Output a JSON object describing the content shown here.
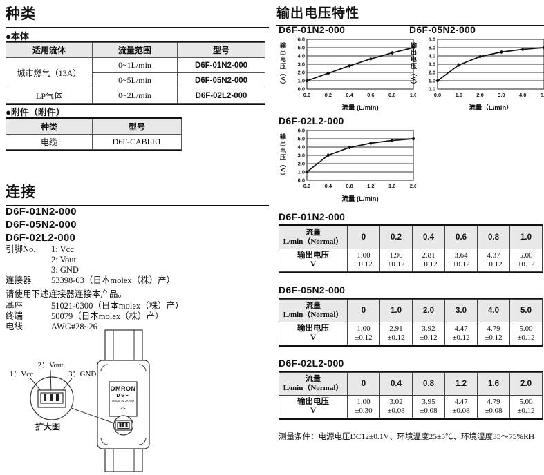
{
  "colors": {
    "header_bg": "#e8e8e8",
    "grid": "#8c8c8c",
    "ink": "#111111"
  },
  "types": {
    "title": "种类",
    "body_label": "●本体",
    "body_table": {
      "headers": [
        "适用流体",
        "流量范围",
        "型号"
      ],
      "fluid1": "城市燃气（13A）",
      "fluid2": "LP气体",
      "rows": [
        {
          "range": "0~1L/min",
          "model": "D6F-01N2-000"
        },
        {
          "range": "0~5L/min",
          "model": "D6F-05N2-000"
        },
        {
          "range": "0~2L/min",
          "model": "D6F-02L2-000"
        }
      ]
    },
    "accessory_label": "●附件（附件）",
    "accessory_table": {
      "headers": [
        "种类",
        "型号"
      ],
      "row": {
        "kind": "电缆",
        "model": "D6F-CABLE1"
      }
    }
  },
  "conn": {
    "title": "连接",
    "models": [
      "D6F-01N2-000",
      "D6F-05N2-000",
      "D6F-02L2-000"
    ],
    "pin_label": "引脚No.",
    "pins": [
      "1: Vcc",
      "2: Vout",
      "3: GND"
    ],
    "connector_label": "连接器",
    "connector_value": "53398-03（日本molex（株）产）",
    "note": "请使用下述连接器连接本产品。",
    "details": [
      {
        "label": "基座",
        "value": "51021-0300（日本molex（株）产）"
      },
      {
        "label": "终端",
        "value": "50079（日本molex（株）产）"
      },
      {
        "label": "电线",
        "value": "AWG#28~26"
      }
    ],
    "diagram": {
      "pin1": "1：Vcc",
      "pin2": "2：Vout",
      "pin3": "3：GND",
      "caption": "扩大图",
      "brand": "OMRON",
      "model": "D6F",
      "origin": "MADE IN JAPAN",
      "arrow": "⇧"
    }
  },
  "output": {
    "title": "输出电压特性",
    "tables": [
      {
        "title": "D6F-01N2-000",
        "corner": [
          "流量",
          "L/min（Normal）"
        ],
        "cols": [
          "0",
          "0.2",
          "0.4",
          "0.6",
          "0.8",
          "1.0"
        ],
        "row_label": [
          "输出电压",
          "V"
        ],
        "values": [
          [
            "1.00",
            "±0.12"
          ],
          [
            "1.90",
            "±0.12"
          ],
          [
            "2.81",
            "±0.12"
          ],
          [
            "3.64",
            "±0.12"
          ],
          [
            "4.37",
            "±0.12"
          ],
          [
            "5.00",
            "±0.12"
          ]
        ]
      },
      {
        "title": "D6F-05N2-000",
        "corner": [
          "流量",
          "L/min（Normal）"
        ],
        "cols": [
          "0",
          "1.0",
          "2.0",
          "3.0",
          "4.0",
          "5.0"
        ],
        "row_label": [
          "输出电压",
          "V"
        ],
        "values": [
          [
            "1.00",
            "±0.12"
          ],
          [
            "2.91",
            "±0.12"
          ],
          [
            "3.92",
            "±0.12"
          ],
          [
            "4.47",
            "±0.12"
          ],
          [
            "4.79",
            "±0.12"
          ],
          [
            "5.00",
            "±0.12"
          ]
        ]
      },
      {
        "title": "D6F-02L2-000",
        "corner": [
          "流量",
          "L/min（Normal）"
        ],
        "cols": [
          "0",
          "0.4",
          "0.8",
          "1.2",
          "1.6",
          "2.0"
        ],
        "row_label": [
          "输出电压",
          "V"
        ],
        "values": [
          [
            "1.00",
            "±0.30"
          ],
          [
            "3.02",
            "±0.08"
          ],
          [
            "3.95",
            "±0.08"
          ],
          [
            "4.47",
            "±0.08"
          ],
          [
            "4.79",
            "±0.08"
          ],
          [
            "5.00",
            "±0.12"
          ]
        ]
      }
    ],
    "footer": "测量条件：电源电压DC12±0.1V、环境温度25±5℃、环境湿度35～75%RH"
  },
  "chart_data": [
    {
      "type": "line",
      "title": "D6F-01N2-000",
      "x": [
        0,
        0.2,
        0.4,
        0.6,
        0.8,
        1.0
      ],
      "y": [
        1.0,
        1.9,
        2.81,
        3.64,
        4.37,
        5.0
      ],
      "xticks": [
        0,
        0.2,
        0.4,
        0.6,
        0.8,
        1.0
      ],
      "yticks": [
        0,
        1,
        2,
        3,
        4,
        5,
        6
      ],
      "xlim": [
        0,
        1.0
      ],
      "ylim": [
        0,
        6.0
      ],
      "xlabel": "流量 (L/min)",
      "ylabel": "输出电压（V）",
      "grid": "horizontal",
      "line_color": "#111111",
      "grid_color": "#8c8c8c"
    },
    {
      "type": "line",
      "title": "D6F-05N2-000",
      "x": [
        0,
        1.0,
        2.0,
        3.0,
        4.0,
        5.0
      ],
      "y": [
        1.0,
        2.91,
        3.92,
        4.47,
        4.79,
        5.0
      ],
      "xticks": [
        0,
        1.0,
        2.0,
        3.0,
        4.0,
        5.0
      ],
      "yticks": [
        0,
        1,
        2,
        3,
        4,
        5,
        6
      ],
      "xlim": [
        0,
        5.0
      ],
      "ylim": [
        0,
        6.0
      ],
      "xlabel": "流量（L/min）",
      "ylabel": "输出电压（V）",
      "grid": "horizontal",
      "line_color": "#111111",
      "grid_color": "#8c8c8c"
    },
    {
      "type": "line",
      "title": "D6F-02L2-000",
      "x": [
        0,
        0.4,
        0.8,
        1.2,
        1.6,
        2.0
      ],
      "y": [
        1.0,
        3.02,
        3.95,
        4.47,
        4.79,
        5.0
      ],
      "xticks": [
        0,
        0.4,
        0.8,
        1.2,
        1.6,
        2.0
      ],
      "yticks": [
        0,
        1,
        2,
        3,
        4,
        5,
        6
      ],
      "xlim": [
        0,
        2.0
      ],
      "ylim": [
        0,
        6.0
      ],
      "xlabel": "流量 (L/min)",
      "ylabel": "输出电压（V）",
      "grid": "horizontal",
      "line_color": "#111111",
      "grid_color": "#8c8c8c"
    }
  ]
}
